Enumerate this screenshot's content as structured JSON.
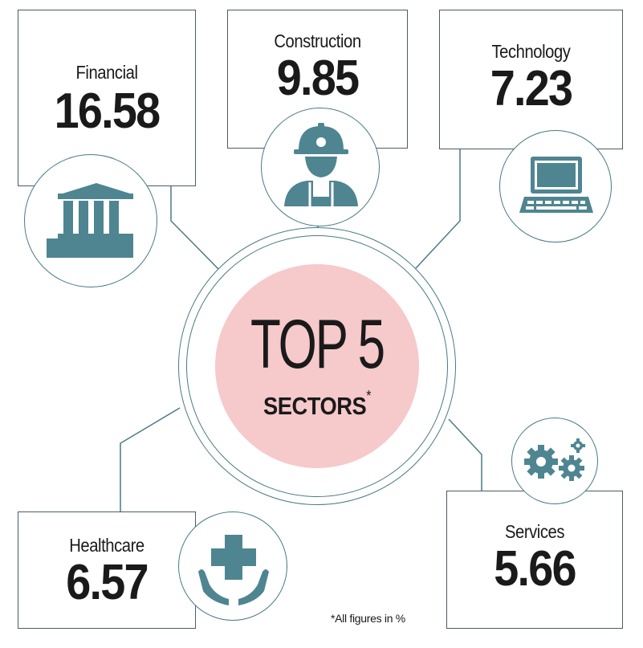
{
  "center": {
    "title": "TOP 5",
    "subtitle": "SECTORS",
    "asterisk": "*"
  },
  "sectors": [
    {
      "label": "Financial",
      "value": "16.58",
      "icon": "bank-icon"
    },
    {
      "label": "Construction",
      "value": "9.85",
      "icon": "construction-worker-icon"
    },
    {
      "label": "Technology",
      "value": "7.23",
      "icon": "laptop-icon"
    },
    {
      "label": "Healthcare",
      "value": "6.57",
      "icon": "medical-cross-hands-icon"
    },
    {
      "label": "Services",
      "value": "5.66",
      "icon": "gears-icon"
    }
  ],
  "footnote": "*All figures in %",
  "colors": {
    "icon_teal": "#4f8591",
    "center_pink": "#f6c9cb",
    "line": "#4a7a84",
    "box_border": "#4a5b66",
    "text": "#1a1a1a"
  }
}
